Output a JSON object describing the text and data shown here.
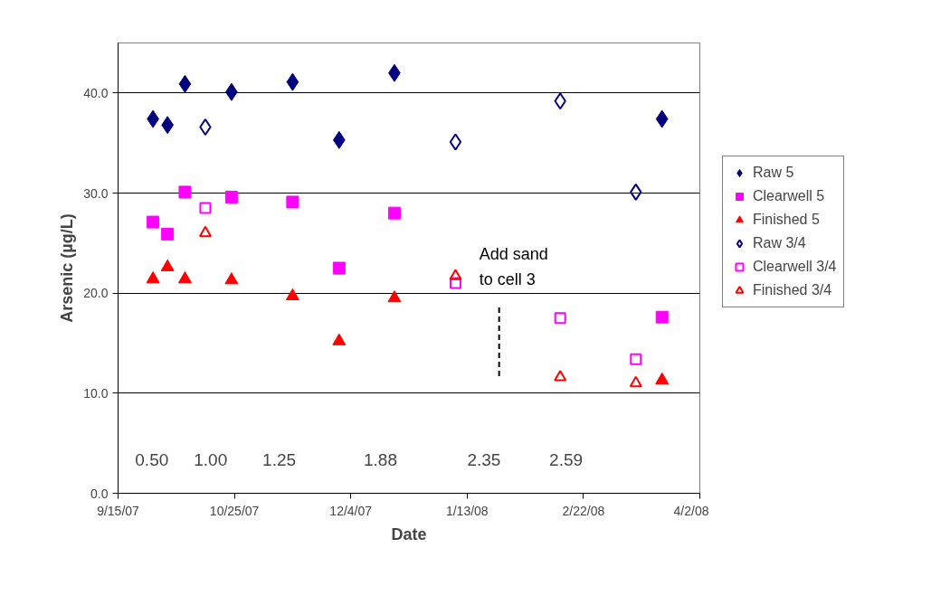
{
  "chart_data": {
    "type": "scatter",
    "xlabel": "Date",
    "ylabel": "Arsenic (µg/L)",
    "xlim": [
      "2007-09-15",
      "2008-04-02"
    ],
    "xticks": [
      {
        "value": "2007-09-15",
        "label": "9/15/07"
      },
      {
        "value": "2007-10-25",
        "label": "10/25/07"
      },
      {
        "value": "2007-12-04",
        "label": "12/4/07"
      },
      {
        "value": "2008-01-13",
        "label": "1/13/08"
      },
      {
        "value": "2008-02-22",
        "label": "2/22/08"
      },
      {
        "value": "2008-04-02",
        "label": "4/2/08"
      }
    ],
    "ylim": [
      0,
      45
    ],
    "yticks": [
      {
        "value": 0,
        "label": "0.0"
      },
      {
        "value": 10,
        "label": "10.0"
      },
      {
        "value": 20,
        "label": "20.0"
      },
      {
        "value": 30,
        "label": "30.0"
      },
      {
        "value": 40,
        "label": "40.0"
      }
    ],
    "grid": "y",
    "legend": "right",
    "series": [
      {
        "name": "Raw 5",
        "color": "#000080",
        "marker": "diamond",
        "x": [
          "2007-09-27",
          "2007-10-02",
          "2007-10-08",
          "2007-10-24",
          "2007-11-14",
          "2007-11-30",
          "2007-12-19",
          "2008-03-20"
        ],
        "values": [
          37.4,
          36.8,
          40.9,
          40.1,
          41.1,
          35.3,
          42.0,
          37.4
        ]
      },
      {
        "name": "Clearwell 5",
        "color": "#ff00ff",
        "marker": "square",
        "x": [
          "2007-09-27",
          "2007-10-02",
          "2007-10-08",
          "2007-10-24",
          "2007-11-14",
          "2007-11-30",
          "2007-12-19",
          "2008-03-20"
        ],
        "values": [
          27.1,
          25.9,
          30.1,
          29.6,
          29.1,
          22.5,
          28.0,
          17.6
        ]
      },
      {
        "name": "Finished 5",
        "color": "#ff0000",
        "marker": "triangle",
        "x": [
          "2007-09-27",
          "2007-10-02",
          "2007-10-08",
          "2007-10-24",
          "2007-11-14",
          "2007-11-30",
          "2007-12-19",
          "2008-03-20"
        ],
        "values": [
          21.4,
          22.6,
          21.4,
          21.3,
          19.7,
          15.2,
          19.5,
          11.3
        ]
      },
      {
        "name": "Raw 3/4",
        "color": "#000080",
        "marker": "diamond-open",
        "x": [
          "2007-10-15",
          "2008-01-09",
          "2008-02-14",
          "2008-03-11"
        ],
        "values": [
          36.6,
          35.1,
          39.2,
          30.1
        ]
      },
      {
        "name": "Clearwell 3/4",
        "color": "#ff00ff",
        "marker": "square-open",
        "x": [
          "2007-10-15",
          "2008-01-09",
          "2008-02-14",
          "2008-03-11"
        ],
        "values": [
          28.5,
          21.0,
          17.5,
          13.4
        ]
      },
      {
        "name": "Finished 3/4",
        "color": "#ff0000",
        "marker": "triangle-open",
        "x": [
          "2007-10-15",
          "2008-01-09",
          "2008-02-14",
          "2008-03-11"
        ],
        "values": [
          26.0,
          21.7,
          11.6,
          11.0
        ]
      }
    ],
    "ref_lines": [
      {
        "axis": "x",
        "value": "2008-01-24",
        "label": "Add sand\nto cell 3",
        "line_style": "dashed",
        "color": "#000000"
      }
    ],
    "annotations": [
      "0.50",
      "1.00",
      "1.25",
      "1.88",
      "2.35",
      "2.59"
    ]
  }
}
